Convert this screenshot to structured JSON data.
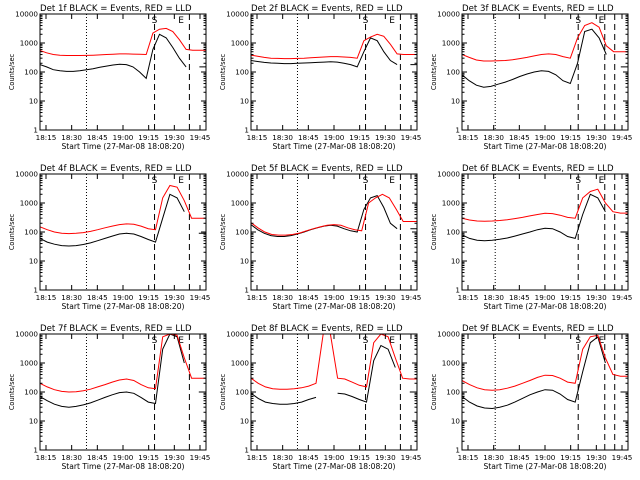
{
  "chart_data": [
    {
      "type": "line",
      "title": "Det 1f BLACK = Events, RED = LLD",
      "xlabel": "Start Time (27-Mar-08 18:08:20)",
      "ylabel": "Counts/sec",
      "yscale": "log",
      "ylim": [
        1,
        10000
      ],
      "yticks": [
        "1",
        "10",
        "100",
        "1000",
        "10000"
      ],
      "xticks": [
        "18:15",
        "18:30",
        "18:45",
        "19:00",
        "19:15",
        "19:30",
        "19:45"
      ],
      "markers": {
        "dotted": [
          0.28
        ],
        "dashed": [
          0.69,
          0.9
        ],
        "labels": [
          {
            "text": "S",
            "at": 0.69
          },
          {
            "text": "E",
            "at": 0.85
          }
        ]
      },
      "series": [
        {
          "color": "#000000",
          "values": [
            180,
            150,
            120,
            110,
            105,
            105,
            110,
            120,
            130,
            145,
            160,
            175,
            185,
            180,
            150,
            100,
            60,
            600,
            2000,
            1500,
            700,
            300,
            150,
            0,
            150,
            150
          ]
        },
        {
          "color": "#ff0000",
          "values": [
            550,
            460,
            400,
            380,
            370,
            370,
            370,
            375,
            380,
            390,
            400,
            410,
            420,
            420,
            415,
            410,
            400,
            2200,
            3000,
            3200,
            2500,
            1300,
            600,
            560,
            560,
            560
          ]
        }
      ]
    },
    {
      "type": "line",
      "title": "Det 2f BLACK = Events, RED = LLD",
      "xlabel": "Start Time (27-Mar-08 18:08:20)",
      "ylabel": "Counts/sec",
      "yscale": "log",
      "ylim": [
        1,
        10000
      ],
      "yticks": [
        "1",
        "10",
        "100",
        "1000",
        "10000"
      ],
      "xticks": [
        "18:15",
        "18:30",
        "18:45",
        "19:00",
        "19:15",
        "19:30",
        "19:45"
      ],
      "markers": {
        "dotted": [
          0.28
        ],
        "dashed": [
          0.69,
          0.9
        ],
        "labels": [
          {
            "text": "S",
            "at": 0.69
          },
          {
            "text": "E",
            "at": 0.85
          }
        ]
      },
      "series": [
        {
          "color": "#000000",
          "values": [
            250,
            230,
            215,
            205,
            200,
            195,
            195,
            200,
            205,
            210,
            215,
            220,
            225,
            220,
            200,
            180,
            150,
            500,
            1500,
            1200,
            500,
            250,
            180,
            0,
            180,
            180
          ]
        },
        {
          "color": "#ff0000",
          "values": [
            380,
            350,
            320,
            300,
            295,
            290,
            290,
            295,
            300,
            310,
            320,
            330,
            340,
            340,
            330,
            320,
            300,
            1200,
            1600,
            2000,
            1700,
            900,
            420,
            400,
            400,
            400
          ]
        }
      ]
    },
    {
      "type": "line",
      "title": "Det 3f BLACK = Events, RED = LLD",
      "xlabel": "Start Time (27-Mar-08 18:08:20)",
      "ylabel": "Counts/sec",
      "yscale": "log",
      "ylim": [
        1,
        10000
      ],
      "yticks": [
        "1",
        "10",
        "100",
        "1000",
        "10000"
      ],
      "xticks": [
        "18:15",
        "18:30",
        "18:45",
        "19:00",
        "19:15",
        "19:30",
        "19:45"
      ],
      "markers": {
        "dotted": [
          0.2
        ],
        "dashed": [
          0.7,
          0.86,
          0.92
        ],
        "labels": [
          {
            "text": "S",
            "at": 0.7
          },
          {
            "text": "E",
            "at": 0.84
          }
        ]
      },
      "series": [
        {
          "color": "#000000",
          "values": [
            80,
            50,
            35,
            30,
            32,
            38,
            45,
            55,
            70,
            85,
            100,
            110,
            105,
            80,
            50,
            40,
            200,
            2500,
            3000,
            1500,
            400,
            0,
            150,
            150
          ]
        },
        {
          "color": "#ff0000",
          "values": [
            400,
            320,
            260,
            240,
            240,
            245,
            250,
            265,
            290,
            320,
            360,
            400,
            420,
            400,
            340,
            300,
            1500,
            4000,
            5000,
            3500,
            800,
            500,
            500,
            500
          ]
        }
      ]
    },
    {
      "type": "line",
      "title": "Det 4f BLACK = Events, RED = LLD",
      "xlabel": "Start Time (27-Mar-08 18:08:20)",
      "ylabel": "Counts/sec",
      "yscale": "log",
      "ylim": [
        1,
        10000
      ],
      "yticks": [
        "1",
        "10",
        "100",
        "1000",
        "10000"
      ],
      "xticks": [
        "18:15",
        "18:30",
        "18:45",
        "19:00",
        "19:15",
        "19:30",
        "19:45"
      ],
      "markers": {
        "dotted": [
          0.28
        ],
        "dashed": [
          0.69,
          0.9
        ],
        "labels": [
          {
            "text": "S",
            "at": 0.69
          },
          {
            "text": "E",
            "at": 0.85
          }
        ]
      },
      "series": [
        {
          "color": "#000000",
          "values": [
            60,
            45,
            38,
            34,
            33,
            34,
            37,
            42,
            50,
            60,
            72,
            85,
            90,
            85,
            70,
            55,
            45,
            300,
            2000,
            1500,
            500,
            0,
            90,
            90
          ]
        },
        {
          "color": "#ff0000",
          "values": [
            150,
            120,
            100,
            90,
            88,
            90,
            95,
            105,
            120,
            140,
            160,
            180,
            190,
            185,
            160,
            130,
            120,
            1500,
            4000,
            3500,
            1200,
            300,
            300,
            300
          ]
        }
      ]
    },
    {
      "type": "line",
      "title": "Det 5f BLACK = Events, RED = LLD",
      "xlabel": "Start Time (27-Mar-08 18:08:20)",
      "ylabel": "Counts/sec",
      "yscale": "log",
      "ylim": [
        1,
        10000
      ],
      "yticks": [
        "1",
        "10",
        "100",
        "1000",
        "10000"
      ],
      "xticks": [
        "18:15",
        "18:30",
        "18:45",
        "19:00",
        "19:15",
        "19:30",
        "19:45"
      ],
      "markers": {
        "dotted": [
          0.28
        ],
        "dashed": [
          0.69,
          0.9
        ],
        "labels": [
          {
            "text": "S",
            "at": 0.69
          },
          {
            "text": "E",
            "at": 0.85
          }
        ]
      },
      "series": [
        {
          "color": "#000000",
          "values": [
            180,
            120,
            90,
            75,
            70,
            70,
            75,
            85,
            100,
            120,
            140,
            160,
            170,
            160,
            130,
            110,
            100,
            600,
            1500,
            1800,
            700,
            200,
            130,
            0,
            130,
            130
          ]
        },
        {
          "color": "#ff0000",
          "values": [
            210,
            140,
            100,
            82,
            78,
            78,
            82,
            92,
            110,
            130,
            150,
            170,
            180,
            170,
            140,
            120,
            110,
            1000,
            1500,
            2000,
            1500,
            600,
            230,
            230,
            230
          ]
        }
      ]
    },
    {
      "type": "line",
      "title": "Det 6f BLACK = Events, RED = LLD",
      "xlabel": "Start Time (27-Mar-08 18:08:20)",
      "ylabel": "Counts/sec",
      "yscale": "log",
      "ylim": [
        1,
        10000
      ],
      "yticks": [
        "1",
        "10",
        "100",
        "1000",
        "10000"
      ],
      "xticks": [
        "18:15",
        "18:30",
        "18:45",
        "19:00",
        "19:15",
        "19:30",
        "19:45"
      ],
      "markers": {
        "dotted": [
          0.2
        ],
        "dashed": [
          0.7,
          0.86,
          0.92
        ],
        "labels": [
          {
            "text": "S",
            "at": 0.7
          },
          {
            "text": "E",
            "at": 0.84
          }
        ]
      },
      "series": [
        {
          "color": "#000000",
          "values": [
            80,
            60,
            52,
            50,
            52,
            56,
            62,
            72,
            85,
            100,
            120,
            135,
            130,
            100,
            70,
            60,
            400,
            2000,
            1500,
            500,
            0,
            100,
            100
          ]
        },
        {
          "color": "#ff0000",
          "values": [
            300,
            260,
            240,
            235,
            240,
            250,
            265,
            290,
            320,
            360,
            400,
            440,
            430,
            380,
            320,
            300,
            1500,
            2500,
            3000,
            1000,
            500,
            450,
            450
          ]
        }
      ]
    },
    {
      "type": "line",
      "title": "Det 7f BLACK = Events, RED = LLD",
      "xlabel": "Start Time (27-Mar-08 18:08:20)",
      "ylabel": "Counts/sec",
      "yscale": "log",
      "ylim": [
        1,
        10000
      ],
      "yticks": [
        "1",
        "10",
        "100",
        "1000",
        "10000"
      ],
      "xticks": [
        "18:15",
        "18:30",
        "18:45",
        "19:00",
        "19:15",
        "19:30",
        "19:45"
      ],
      "markers": {
        "dotted": [
          0.28
        ],
        "dashed": [
          0.69,
          0.9
        ],
        "labels": [
          {
            "text": "S",
            "at": 0.69
          },
          {
            "text": "E",
            "at": 0.85
          }
        ]
      },
      "series": [
        {
          "color": "#000000",
          "values": [
            70,
            50,
            38,
            32,
            30,
            32,
            36,
            42,
            52,
            65,
            80,
            95,
            100,
            90,
            65,
            45,
            40,
            3000,
            10000,
            8000,
            1000,
            0,
            100,
            100
          ]
        },
        {
          "color": "#ff0000",
          "values": [
            200,
            150,
            120,
            105,
            100,
            102,
            110,
            125,
            150,
            180,
            220,
            260,
            280,
            250,
            180,
            140,
            130,
            8000,
            10000,
            9000,
            1500,
            300,
            300,
            300
          ]
        }
      ]
    },
    {
      "type": "line",
      "title": "Det 8f BLACK = Events, RED = LLD",
      "xlabel": "Start Time (27-Mar-08 18:08:20)",
      "ylabel": "Counts/sec",
      "yscale": "log",
      "ylim": [
        1,
        10000
      ],
      "yticks": [
        "1",
        "10",
        "100",
        "1000",
        "10000"
      ],
      "xticks": [
        "18:15",
        "18:30",
        "18:45",
        "19:00",
        "19:15",
        "19:30",
        "19:45"
      ],
      "markers": {
        "dotted": [
          0.28
        ],
        "dashed": [
          0.69,
          0.9
        ],
        "labels": [
          {
            "text": "S",
            "at": 0.69
          },
          {
            "text": "E",
            "at": 0.85
          }
        ]
      },
      "series": [
        {
          "color": "#000000",
          "values": [
            90,
            60,
            45,
            40,
            38,
            38,
            40,
            45,
            55,
            65,
            0,
            0,
            90,
            85,
            70,
            55,
            45,
            1200,
            4000,
            3000,
            700,
            0,
            100,
            100
          ]
        },
        {
          "color": "#ff0000",
          "values": [
            300,
            200,
            150,
            130,
            125,
            125,
            130,
            140,
            160,
            200,
            10000,
            10000,
            300,
            280,
            220,
            170,
            150,
            5000,
            10000,
            8000,
            1500,
            300,
            280,
            280
          ]
        }
      ]
    },
    {
      "type": "line",
      "title": "Det 9f BLACK = Events, RED = LLD",
      "xlabel": "Start Time (27-Mar-08 18:08:20)",
      "ylabel": "Counts/sec",
      "yscale": "log",
      "ylim": [
        1,
        10000
      ],
      "yticks": [
        "1",
        "10",
        "100",
        "1000",
        "10000"
      ],
      "xticks": [
        "18:15",
        "18:30",
        "18:45",
        "19:00",
        "19:15",
        "19:30",
        "19:45"
      ],
      "markers": {
        "dotted": [
          0.2
        ],
        "dashed": [
          0.7,
          0.86,
          0.92
        ],
        "labels": [
          {
            "text": "S",
            "at": 0.7
          },
          {
            "text": "E",
            "at": 0.84
          }
        ]
      },
      "series": [
        {
          "color": "#000000",
          "values": [
            70,
            45,
            33,
            28,
            27,
            30,
            35,
            45,
            60,
            80,
            100,
            120,
            115,
            85,
            55,
            45,
            500,
            5000,
            8000,
            1000,
            0,
            100,
            100
          ]
        },
        {
          "color": "#ff0000",
          "values": [
            250,
            180,
            140,
            120,
            115,
            120,
            135,
            160,
            200,
            250,
            320,
            380,
            370,
            300,
            220,
            200,
            3000,
            8000,
            9000,
            1500,
            400,
            350,
            350
          ]
        }
      ]
    }
  ]
}
